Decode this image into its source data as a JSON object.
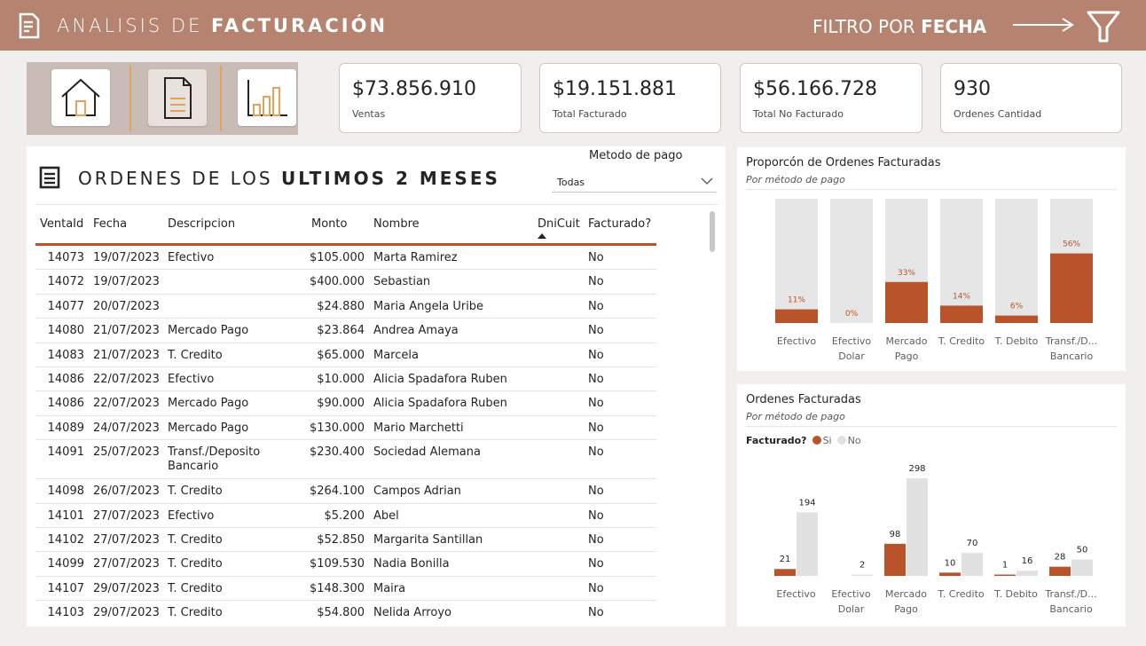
{
  "header": {
    "title_light": "ANALISIS DE",
    "title_bold": "FACTURACIÓN",
    "filter_light": "FILTRO POR",
    "filter_bold": "FECHA",
    "icons": [
      "document-icon",
      "arrow-right-icon",
      "funnel-icon"
    ]
  },
  "nav": {
    "items": [
      {
        "name": "home-icon"
      },
      {
        "name": "document-icon"
      },
      {
        "name": "bar-chart-icon"
      }
    ]
  },
  "kpis": [
    {
      "value": "$73.856.910",
      "label": "Ventas"
    },
    {
      "value": "$19.151.881",
      "label": "Total Facturado"
    },
    {
      "value": "$56.166.728",
      "label": "Total No Facturado"
    },
    {
      "value": "930",
      "label": "Ordenes Cantidad"
    }
  ],
  "orders": {
    "title_light": "ORDENES DE LOS",
    "title_bold": "ULTIMOS 2 MESES",
    "slicer_label": "Metodo de pago",
    "slicer_value": "Todas",
    "columns": [
      "VentaId",
      "Fecha",
      "Descripcion",
      "Monto",
      "Nombre",
      "DniCuit",
      "Facturado?"
    ],
    "rows": [
      [
        "14073",
        "19/07/2023",
        "Efectivo",
        "$105.000",
        "Marta Ramirez",
        "",
        "No"
      ],
      [
        "14072",
        "19/07/2023",
        "",
        "$400.000",
        "Sebastian",
        "",
        "No"
      ],
      [
        "14077",
        "20/07/2023",
        "",
        "$24.880",
        "Maria Angela Uribe",
        "",
        "No"
      ],
      [
        "14080",
        "21/07/2023",
        "Mercado Pago",
        "$23.864",
        "Andrea Amaya",
        "",
        "No"
      ],
      [
        "14083",
        "21/07/2023",
        "T. Credito",
        "$65.000",
        "Marcela",
        "",
        "No"
      ],
      [
        "14086",
        "22/07/2023",
        "Efectivo",
        "$10.000",
        "Alicia Spadafora Ruben",
        "",
        "No"
      ],
      [
        "14086",
        "22/07/2023",
        "Mercado Pago",
        "$90.000",
        "Alicia Spadafora Ruben",
        "",
        "No"
      ],
      [
        "14089",
        "24/07/2023",
        "Mercado Pago",
        "$130.000",
        "Mario Marchetti",
        "",
        "No"
      ],
      [
        "14091",
        "25/07/2023",
        "Transf./Deposito Bancario",
        "$230.400",
        "Sociedad Alemana",
        "",
        "No"
      ],
      [
        "14098",
        "26/07/2023",
        "T. Credito",
        "$264.100",
        "Campos Adrian",
        "",
        "No"
      ],
      [
        "14101",
        "27/07/2023",
        "Efectivo",
        "$5.200",
        "Abel",
        "",
        "No"
      ],
      [
        "14102",
        "27/07/2023",
        "T. Credito",
        "$52.850",
        "Margarita Santillan",
        "",
        "No"
      ],
      [
        "14099",
        "27/07/2023",
        "T. Credito",
        "$109.530",
        "Nadia Bonilla",
        "",
        "No"
      ],
      [
        "14107",
        "29/07/2023",
        "T. Credito",
        "$148.300",
        "Maira",
        "",
        "No"
      ],
      [
        "14103",
        "29/07/2023",
        "T. Credito",
        "$54.800",
        "Nelida Arroyo",
        "",
        "No"
      ]
    ]
  },
  "colors": {
    "accent": "#b8532a",
    "header": "#b5836f",
    "track": "#e6e6e6",
    "nav_bg": "#c9bcb7",
    "separator": "#e3a35a"
  },
  "chart_data": [
    {
      "type": "bar",
      "stacked": "100%",
      "title": "Proporcón de Ordenes Facturadas",
      "subtitle": "Por método de pago",
      "categories": [
        "Efectivo",
        "Efectivo Dolar",
        "Mercado Pago",
        "T. Credito",
        "T. Debito",
        "Transf./D... Bancario"
      ],
      "category_lines": [
        [
          "Efectivo"
        ],
        [
          "Efectivo",
          "Dolar"
        ],
        [
          "Mercado",
          "Pago"
        ],
        [
          "T. Credito"
        ],
        [
          "T. Debito"
        ],
        [
          "Transf./D...",
          "Bancario"
        ]
      ],
      "values": [
        11,
        0,
        33,
        14,
        6,
        56
      ],
      "labels": [
        "11%",
        "0%",
        "33%",
        "14%",
        "6%",
        "56%"
      ],
      "ylim": [
        0,
        100
      ]
    },
    {
      "type": "bar",
      "title": "Ordenes Facturadas",
      "subtitle": "Por método de pago",
      "legend_title": "Facturado?",
      "categories": [
        "Efectivo",
        "Efectivo Dolar",
        "Mercado Pago",
        "T. Credito",
        "T. Debito",
        "Transf./D... Bancario"
      ],
      "category_lines": [
        [
          "Efectivo"
        ],
        [
          "Efectivo",
          "Dolar"
        ],
        [
          "Mercado",
          "Pago"
        ],
        [
          "T. Credito"
        ],
        [
          "T. Debito"
        ],
        [
          "Transf./D...",
          "Bancario"
        ]
      ],
      "series": [
        {
          "name": "Si",
          "values": [
            21,
            0,
            98,
            10,
            1,
            28
          ]
        },
        {
          "name": "No",
          "values": [
            194,
            2,
            298,
            70,
            16,
            50
          ]
        }
      ],
      "ylim": [
        0,
        298
      ]
    }
  ]
}
